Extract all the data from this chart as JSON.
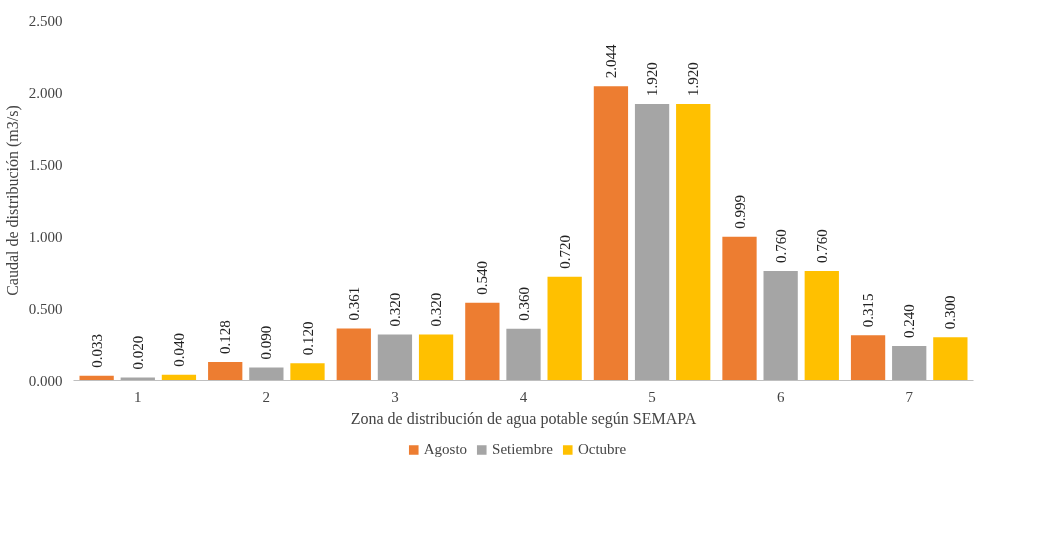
{
  "chart_data": {
    "type": "bar",
    "xlabel": "Zona de distribución de agua potable según SEMAPA",
    "ylabel": "Caudal de distribución (m3/s)",
    "categories": [
      "1",
      "2",
      "3",
      "4",
      "5",
      "6",
      "7"
    ],
    "series": [
      {
        "name": "Agosto",
        "color": "#ed7d31",
        "values": [
          0.033,
          0.128,
          0.361,
          0.54,
          2.044,
          0.999,
          0.315
        ],
        "value_labels": [
          "0.033",
          "0.128",
          "0.361",
          "0.540",
          "2.044",
          "0.999",
          "0.315"
        ]
      },
      {
        "name": "Setiembre",
        "color": "#a5a5a5",
        "values": [
          0.02,
          0.09,
          0.32,
          0.36,
          1.92,
          0.76,
          0.24
        ],
        "value_labels": [
          "0.020",
          "0.090",
          "0.320",
          "0.360",
          "1.920",
          "0.760",
          "0.240"
        ]
      },
      {
        "name": "Octubre",
        "color": "#ffc000",
        "values": [
          0.04,
          0.12,
          0.32,
          0.72,
          1.92,
          0.76,
          0.3
        ],
        "value_labels": [
          "0.040",
          "0.120",
          "0.320",
          "0.720",
          "1.920",
          "0.760",
          "0.300"
        ]
      }
    ],
    "ylim": [
      0,
      2.5
    ],
    "yticks": [
      {
        "value": 0,
        "label": "0.000"
      },
      {
        "value": 0.5,
        "label": "0.500"
      },
      {
        "value": 1,
        "label": "1.000"
      },
      {
        "value": 1.5,
        "label": "1.500"
      },
      {
        "value": 2,
        "label": "2.000"
      },
      {
        "value": 2.5,
        "label": "2.500"
      }
    ],
    "legend": "bottom"
  }
}
